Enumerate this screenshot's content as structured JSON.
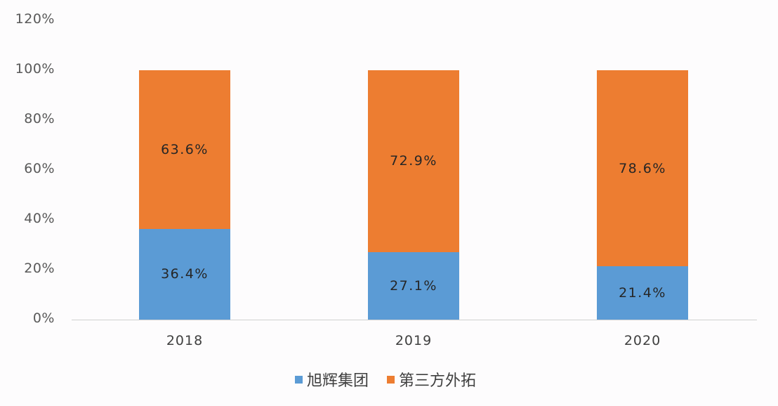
{
  "chart_data": {
    "type": "bar",
    "stacked": true,
    "title": "",
    "xlabel": "",
    "ylabel": "",
    "ylim": [
      0,
      120
    ],
    "y_ticks": [
      "0%",
      "20%",
      "40%",
      "60%",
      "80%",
      "100%",
      "120%"
    ],
    "categories": [
      "2018",
      "2019",
      "2020"
    ],
    "series": [
      {
        "name": "旭辉集团",
        "color": "#5b9bd5",
        "values": [
          36.4,
          27.1,
          21.4
        ],
        "labels": [
          "36.4%",
          "27.1%",
          "21.4%"
        ]
      },
      {
        "name": "第三方外拓",
        "color": "#ed7d31",
        "values": [
          63.6,
          72.9,
          78.6
        ],
        "labels": [
          "63.6%",
          "72.9%",
          "78.6%"
        ]
      }
    ],
    "grid": false,
    "legend_position": "bottom"
  },
  "legend": {
    "items": [
      {
        "label": "旭辉集团",
        "color": "#5b9bd5"
      },
      {
        "label": "第三方外拓",
        "color": "#ed7d31"
      }
    ]
  }
}
